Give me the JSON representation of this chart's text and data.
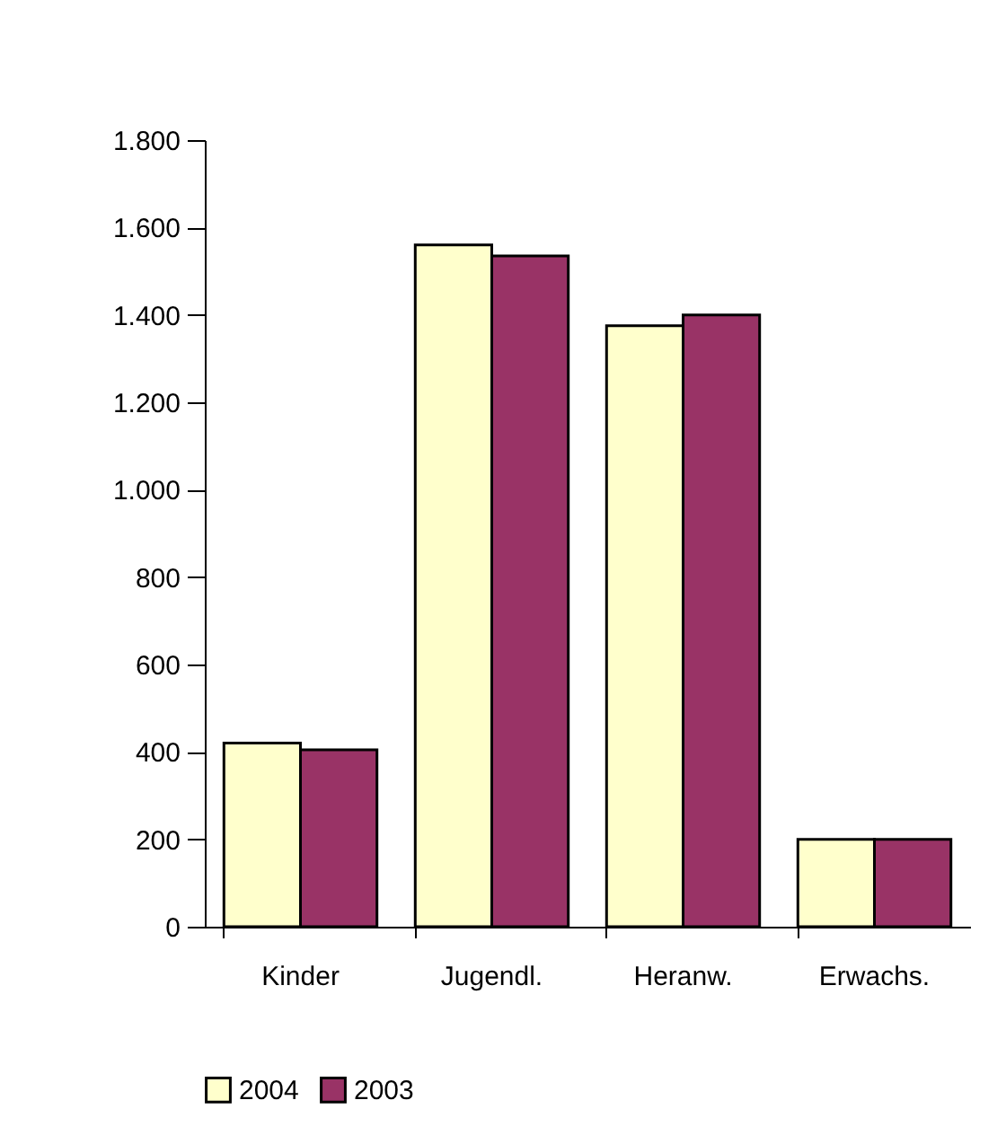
{
  "chart_data": {
    "type": "bar",
    "categories": [
      "Kinder",
      "Jugendl.",
      "Heranw.",
      "Erwachs."
    ],
    "series": [
      {
        "name": "2004",
        "color": "#ffffcc",
        "values": [
          420,
          1560,
          1375,
          200
        ]
      },
      {
        "name": "2003",
        "color": "#993366",
        "values": [
          405,
          1535,
          1400,
          200
        ]
      }
    ],
    "ylim": [
      0,
      1800
    ],
    "yticks": [
      0,
      200,
      400,
      600,
      800,
      {
        "value": 1000,
        "label": "1.000"
      },
      {
        "value": 1200,
        "label": "1.200"
      },
      {
        "value": 1400,
        "label": "1.400"
      },
      {
        "value": 1600,
        "label": "1.600"
      },
      {
        "value": 1800,
        "label": "1.800"
      }
    ],
    "grid": false,
    "legend": "bottom"
  }
}
